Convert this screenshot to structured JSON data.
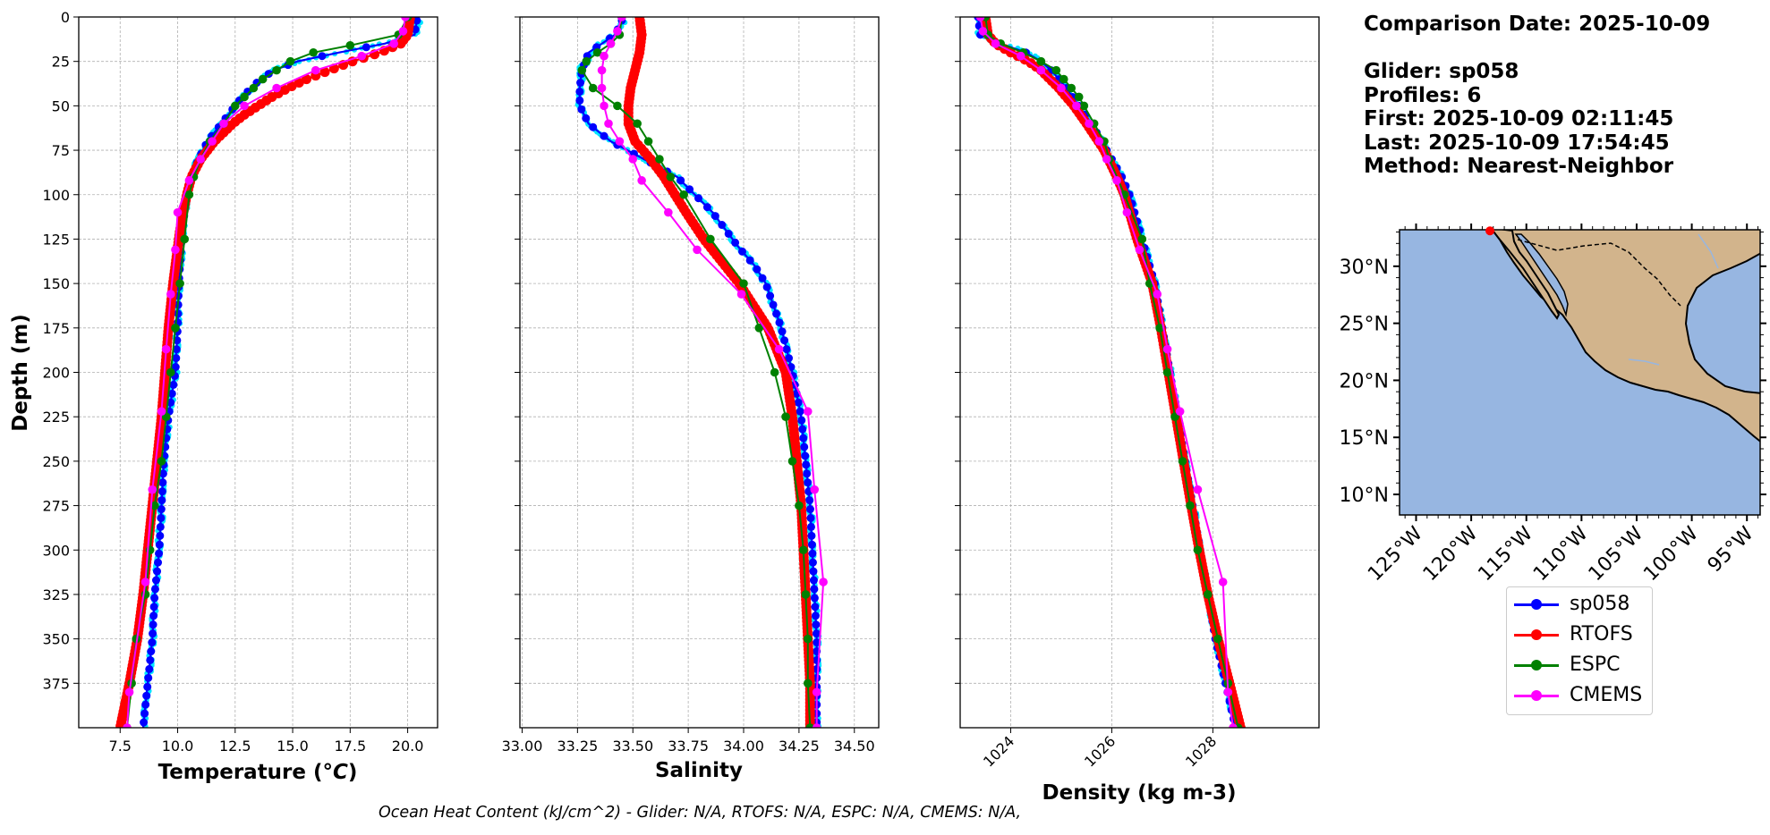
{
  "info": {
    "comparison_date": "Comparison Date: 2025-10-09",
    "glider": "Glider: sp058",
    "profiles": "Profiles: 6",
    "first": "First: 2025-10-09 02:11:45",
    "last": "Last: 2025-10-09 17:54:45",
    "method": "Method: Nearest-Neighbor"
  },
  "footer": "Ocean Heat Content (kJ/cm^2) - Glider: N/A,  RTOFS: N/A,  ESPC: N/A,  CMEMS: N/A,",
  "colors": {
    "sp058": "#0000ff",
    "sp058_raw": "#00e5ff",
    "RTOFS": "#ff0000",
    "ESPC": "#008000",
    "CMEMS": "#ff00ff",
    "ocean": "#97b6e1",
    "land": "#d2b48c"
  },
  "legend": [
    {
      "label": "sp058",
      "color": "#0000ff"
    },
    {
      "label": "RTOFS",
      "color": "#ff0000"
    },
    {
      "label": "ESPC",
      "color": "#008000"
    },
    {
      "label": "CMEMS",
      "color": "#ff00ff"
    }
  ],
  "map": {
    "lon_labels": [
      "125°W",
      "120°W",
      "115°W",
      "110°W",
      "105°W",
      "100°W",
      "95°W"
    ],
    "lon_values": [
      -125,
      -120,
      -115,
      -110,
      -105,
      -100,
      -95
    ],
    "lat_labels": [
      "30°N",
      "25°N",
      "20°N",
      "15°N",
      "10°N"
    ],
    "lat_values": [
      30,
      25,
      20,
      15,
      10
    ],
    "extent": {
      "lon_min": -126.5,
      "lon_max": -93.8,
      "lat_min": 8.2,
      "lat_max": 33.2
    },
    "glider_location": {
      "lon": -118.3,
      "lat": 33.1
    }
  },
  "chart_data": [
    {
      "type": "line",
      "title": "",
      "xlabel": "Temperature (°C)",
      "ylabel": "Depth (m)",
      "xlim": [
        5.7,
        21.3
      ],
      "ylim": [
        400,
        0
      ],
      "xticks": [
        7.5,
        10.0,
        12.5,
        15.0,
        17.5,
        20.0
      ],
      "xtick_labels": [
        "7.5",
        "10.0",
        "12.5",
        "15.0",
        "17.5",
        "20.0"
      ],
      "yticks": [
        0,
        25,
        50,
        75,
        100,
        125,
        150,
        175,
        200,
        225,
        250,
        275,
        300,
        325,
        350,
        375
      ],
      "ytick_labels": [
        "0",
        "25",
        "50",
        "75",
        "100",
        "125",
        "150",
        "175",
        "200",
        "225",
        "250",
        "275",
        "300",
        "325",
        "350",
        "375"
      ],
      "grid": true,
      "series": [
        {
          "name": "sp058",
          "depth": [
            2,
            10,
            15,
            20,
            25,
            30,
            35,
            40,
            45,
            50,
            55,
            60,
            65,
            70,
            75,
            80,
            90,
            100,
            120,
            150,
            175,
            200,
            225,
            250,
            275,
            300,
            325,
            350,
            375,
            400
          ],
          "values": [
            20.4,
            20.3,
            19.0,
            17.0,
            15.2,
            14.2,
            13.6,
            13.2,
            12.8,
            12.5,
            12.2,
            11.9,
            11.6,
            11.3,
            11.1,
            10.9,
            10.6,
            10.4,
            10.2,
            10.05,
            10.0,
            9.9,
            9.6,
            9.4,
            9.3,
            9.2,
            9.0,
            8.9,
            8.7,
            8.5
          ]
        },
        {
          "name": "RTOFS",
          "depth": [
            1,
            10,
            15,
            20,
            25,
            30,
            35,
            40,
            45,
            50,
            55,
            60,
            65,
            70,
            75,
            80,
            90,
            100,
            120,
            150,
            175,
            200,
            225,
            250,
            275,
            300,
            325,
            350,
            375,
            400
          ],
          "values": [
            20.1,
            20.0,
            19.7,
            18.8,
            17.6,
            16.6,
            15.6,
            14.8,
            14.1,
            13.5,
            12.9,
            12.4,
            12.0,
            11.6,
            11.3,
            11.0,
            10.6,
            10.4,
            10.1,
            9.8,
            9.6,
            9.45,
            9.3,
            9.1,
            8.9,
            8.7,
            8.5,
            8.25,
            7.9,
            7.5
          ]
        },
        {
          "name": "ESPC",
          "depth": [
            0,
            10,
            16,
            20,
            25,
            30,
            35,
            40,
            45,
            50,
            60,
            70,
            80,
            90,
            100,
            125,
            150,
            175,
            200,
            225,
            250,
            275,
            300,
            325,
            350,
            375,
            400
          ],
          "values": [
            20.0,
            19.6,
            17.5,
            15.9,
            14.9,
            14.3,
            13.7,
            13.3,
            12.9,
            12.5,
            12.0,
            11.4,
            11.0,
            10.7,
            10.5,
            10.3,
            10.1,
            9.9,
            9.7,
            9.5,
            9.3,
            9.0,
            8.8,
            8.6,
            8.2,
            8.0,
            7.8
          ]
        },
        {
          "name": "CMEMS",
          "depth": [
            0,
            8,
            15,
            22,
            30,
            40,
            50,
            60,
            70,
            80,
            92,
            110,
            131,
            156,
            187,
            222,
            266,
            318,
            380,
            400
          ],
          "values": [
            19.9,
            19.8,
            19.4,
            18.0,
            16.0,
            14.3,
            12.9,
            12.0,
            11.5,
            11.0,
            10.5,
            10.0,
            9.9,
            9.7,
            9.5,
            9.3,
            8.9,
            8.6,
            7.9,
            7.8
          ]
        }
      ]
    },
    {
      "type": "line",
      "title": "",
      "xlabel": "Salinity",
      "ylabel": "",
      "xlim": [
        32.99,
        34.61
      ],
      "ylim": [
        400,
        0
      ],
      "xticks": [
        33.0,
        33.25,
        33.5,
        33.75,
        34.0,
        34.25,
        34.5
      ],
      "xtick_labels": [
        "33.00",
        "33.25",
        "33.50",
        "33.75",
        "34.00",
        "34.25",
        "34.50"
      ],
      "grid": true,
      "series": [
        {
          "name": "sp058",
          "depth": [
            2,
            10,
            20,
            30,
            40,
            50,
            60,
            70,
            80,
            90,
            100,
            110,
            120,
            130,
            140,
            150,
            175,
            200,
            225,
            250,
            275,
            300,
            325,
            350,
            375,
            400
          ],
          "values": [
            33.45,
            33.42,
            33.3,
            33.27,
            33.26,
            33.26,
            33.3,
            33.4,
            33.55,
            33.7,
            33.78,
            33.86,
            33.92,
            33.98,
            34.05,
            34.1,
            34.17,
            34.22,
            34.26,
            34.28,
            34.3,
            34.31,
            34.32,
            34.33,
            34.33,
            34.33
          ]
        },
        {
          "name": "RTOFS",
          "depth": [
            0,
            10,
            20,
            30,
            40,
            50,
            60,
            70,
            80,
            90,
            100,
            110,
            125,
            150,
            175,
            200,
            225,
            250,
            275,
            300,
            325,
            350,
            375,
            400
          ],
          "values": [
            33.53,
            33.54,
            33.53,
            33.51,
            33.49,
            33.48,
            33.48,
            33.51,
            33.58,
            33.64,
            33.69,
            33.74,
            33.82,
            33.98,
            34.11,
            34.19,
            34.22,
            34.24,
            34.26,
            34.27,
            34.28,
            34.29,
            34.3,
            34.3
          ]
        },
        {
          "name": "ESPC",
          "depth": [
            0,
            10,
            15,
            20,
            25,
            30,
            40,
            50,
            60,
            70,
            80,
            90,
            100,
            125,
            150,
            175,
            200,
            225,
            250,
            275,
            300,
            325,
            350,
            375,
            400
          ],
          "values": [
            33.45,
            33.44,
            33.4,
            33.34,
            33.29,
            33.27,
            33.32,
            33.43,
            33.52,
            33.57,
            33.62,
            33.67,
            33.73,
            33.85,
            34.0,
            34.07,
            34.14,
            34.19,
            34.22,
            34.25,
            34.27,
            34.28,
            34.29,
            34.29,
            34.3
          ]
        },
        {
          "name": "CMEMS",
          "depth": [
            0,
            8,
            15,
            22,
            30,
            40,
            50,
            60,
            70,
            80,
            92,
            110,
            131,
            156,
            187,
            222,
            266,
            318,
            380,
            400
          ],
          "values": [
            33.45,
            33.43,
            33.4,
            33.37,
            33.36,
            33.36,
            33.37,
            33.39,
            33.44,
            33.5,
            33.54,
            33.66,
            33.79,
            33.99,
            34.16,
            34.29,
            34.32,
            34.36,
            34.33,
            34.33
          ]
        }
      ]
    },
    {
      "type": "line",
      "title": "",
      "xlabel": "Density (kg m-3)",
      "ylabel": "",
      "xlim": [
        1023.0,
        1030.1
      ],
      "ylim": [
        400,
        0
      ],
      "xticks": [
        1024,
        1026,
        1028
      ],
      "xtick_labels": [
        "1024",
        "1026",
        "1028"
      ],
      "grid": true,
      "series": [
        {
          "name": "sp058",
          "depth": [
            0,
            10,
            15,
            20,
            25,
            30,
            40,
            50,
            60,
            75,
            90,
            100,
            125,
            150,
            175,
            200,
            225,
            250,
            275,
            300,
            325,
            350,
            375,
            400
          ],
          "values": [
            1023.35,
            1023.4,
            1023.8,
            1024.3,
            1024.6,
            1024.8,
            1025.1,
            1025.35,
            1025.6,
            1025.9,
            1026.2,
            1026.35,
            1026.6,
            1026.85,
            1027.0,
            1027.15,
            1027.3,
            1027.45,
            1027.6,
            1027.75,
            1027.9,
            1028.05,
            1028.25,
            1028.45
          ]
        },
        {
          "name": "RTOFS",
          "depth": [
            0,
            10,
            15,
            20,
            25,
            30,
            40,
            50,
            60,
            75,
            90,
            100,
            125,
            150,
            175,
            200,
            225,
            250,
            275,
            300,
            325,
            350,
            375,
            400
          ],
          "values": [
            1023.5,
            1023.55,
            1023.7,
            1024.0,
            1024.35,
            1024.6,
            1024.95,
            1025.25,
            1025.5,
            1025.85,
            1026.1,
            1026.25,
            1026.5,
            1026.8,
            1026.97,
            1027.12,
            1027.27,
            1027.42,
            1027.57,
            1027.73,
            1027.9,
            1028.1,
            1028.33,
            1028.55
          ]
        },
        {
          "name": "ESPC",
          "depth": [
            0,
            10,
            15,
            20,
            25,
            30,
            35,
            40,
            45,
            50,
            60,
            70,
            80,
            100,
            125,
            150,
            175,
            200,
            225,
            250,
            275,
            300,
            325,
            350,
            375,
            400
          ],
          "values": [
            1023.5,
            1023.55,
            1023.8,
            1024.25,
            1024.6,
            1024.9,
            1025.05,
            1025.2,
            1025.35,
            1025.45,
            1025.65,
            1025.85,
            1025.95,
            1026.25,
            1026.6,
            1026.75,
            1026.95,
            1027.1,
            1027.25,
            1027.4,
            1027.55,
            1027.7,
            1027.9,
            1028.1,
            1028.3,
            1028.5
          ]
        },
        {
          "name": "CMEMS",
          "depth": [
            0,
            8,
            15,
            22,
            30,
            40,
            50,
            60,
            70,
            80,
            92,
            110,
            131,
            156,
            187,
            222,
            266,
            318,
            380,
            400
          ],
          "values": [
            1023.4,
            1023.45,
            1023.7,
            1024.2,
            1024.6,
            1025.0,
            1025.3,
            1025.55,
            1025.75,
            1025.9,
            1026.1,
            1026.3,
            1026.55,
            1026.9,
            1027.1,
            1027.35,
            1027.7,
            1028.2,
            1028.3,
            1028.4
          ]
        }
      ]
    }
  ]
}
